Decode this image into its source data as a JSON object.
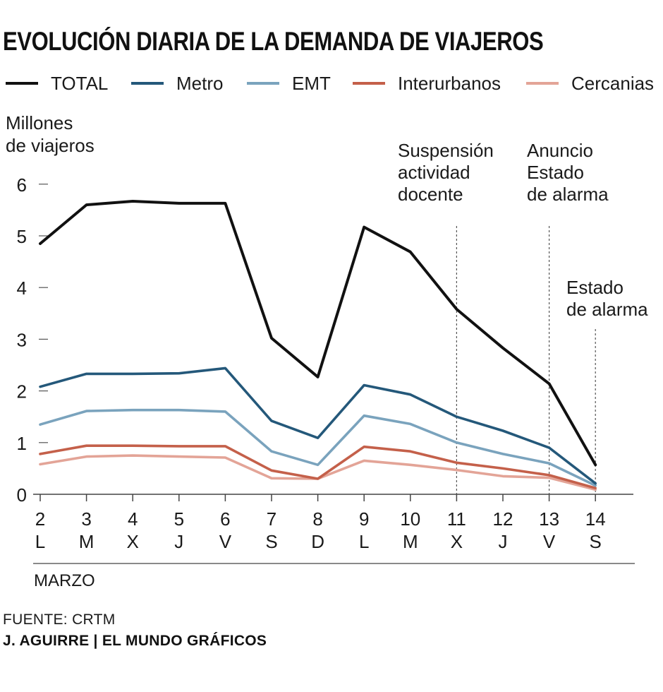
{
  "header": {
    "title": "EVOLUCIÓN DIARIA DE LA DEMANDA DE VIAJEROS"
  },
  "legend": [
    {
      "label": "TOTAL",
      "color": "#111111"
    },
    {
      "label": "Metro",
      "color": "#24587a"
    },
    {
      "label": "EMT",
      "color": "#7aa3bd"
    },
    {
      "label": "Interurbanos",
      "color": "#c4604a"
    },
    {
      "label": "Cercanias",
      "color": "#e3a497"
    }
  ],
  "footer": {
    "source": "FUENTE: CRTM",
    "credit": "J. AGUIRRE | EL MUNDO GRÁFICOS"
  },
  "chart_data": {
    "type": "line",
    "ylabel_lines": [
      "Millones",
      "de viajeros"
    ],
    "xlabel": "MARZO",
    "ylim": [
      0,
      6
    ],
    "yticks": [
      0,
      1,
      2,
      3,
      4,
      5,
      6
    ],
    "categories": [
      "2",
      "3",
      "4",
      "5",
      "6",
      "7",
      "8",
      "9",
      "10",
      "11",
      "12",
      "13",
      "14"
    ],
    "weekdays": [
      "L",
      "M",
      "X",
      "J",
      "V",
      "S",
      "D",
      "L",
      "M",
      "X",
      "J",
      "V",
      "S"
    ],
    "series": [
      {
        "name": "TOTAL",
        "color": "#111111",
        "values": [
          4.85,
          5.6,
          5.67,
          5.63,
          5.63,
          3.02,
          2.27,
          5.17,
          4.69,
          3.58,
          2.83,
          2.14,
          0.57
        ]
      },
      {
        "name": "Metro",
        "color": "#24587a",
        "values": [
          2.08,
          2.33,
          2.33,
          2.34,
          2.44,
          1.42,
          1.09,
          2.11,
          1.93,
          1.5,
          1.23,
          0.9,
          0.21
        ]
      },
      {
        "name": "EMT",
        "color": "#7aa3bd",
        "values": [
          1.35,
          1.61,
          1.63,
          1.63,
          1.6,
          0.83,
          0.57,
          1.52,
          1.36,
          1.0,
          0.78,
          0.6,
          0.17
        ]
      },
      {
        "name": "Interurbanos",
        "color": "#c4604a",
        "values": [
          0.78,
          0.94,
          0.94,
          0.93,
          0.93,
          0.46,
          0.3,
          0.92,
          0.83,
          0.61,
          0.5,
          0.37,
          0.12
        ]
      },
      {
        "name": "Cercanias",
        "color": "#e3a497",
        "values": [
          0.58,
          0.73,
          0.75,
          0.73,
          0.71,
          0.31,
          0.3,
          0.65,
          0.57,
          0.47,
          0.35,
          0.32,
          0.09
        ]
      }
    ],
    "annotations": [
      {
        "x": "11",
        "lines": [
          "Suspensión",
          "actividad",
          "docente"
        ]
      },
      {
        "x": "13",
        "lines": [
          "Anuncio",
          "Estado",
          "de alarma"
        ]
      },
      {
        "x": "14",
        "lines": [
          "Estado",
          "de alarma"
        ]
      }
    ]
  }
}
